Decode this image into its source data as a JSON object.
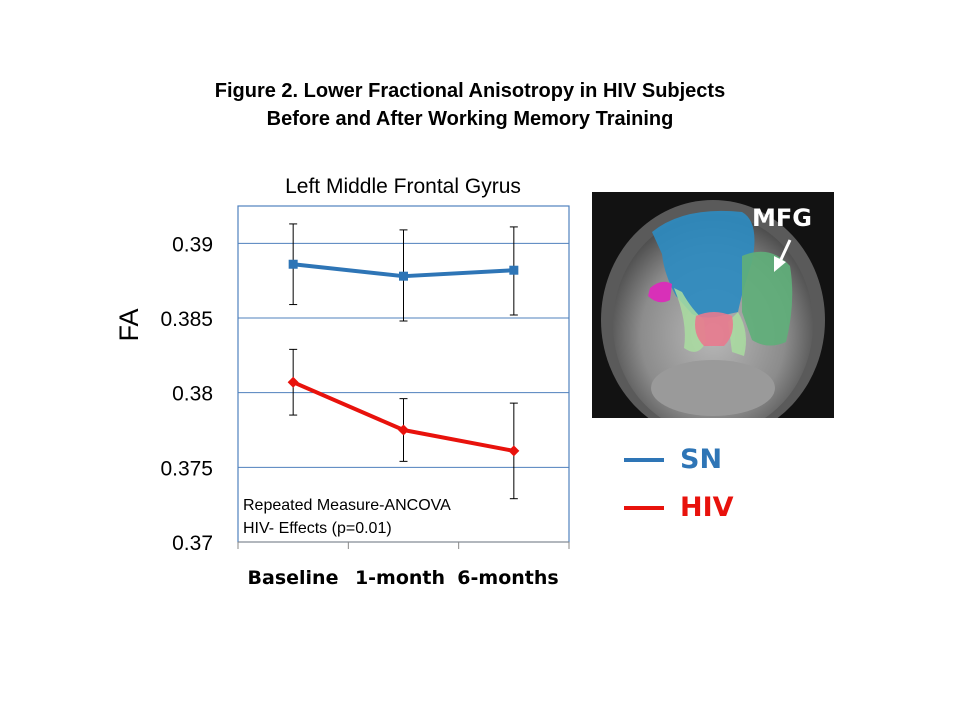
{
  "title": {
    "line1": "Figure 2.  Lower Fractional Anisotropy in HIV Subjects",
    "line2": "Before and After Working Memory Training"
  },
  "chart_data": {
    "type": "line",
    "title": "Left Middle Frontal Gyrus",
    "ylabel": "FA",
    "xlabel": "",
    "categories": [
      "Baseline",
      "1-month",
      "6-months"
    ],
    "ylim": [
      0.37,
      0.3925
    ],
    "yticks": [
      0.37,
      0.375,
      0.38,
      0.385,
      0.39
    ],
    "ytick_labels": [
      "0.37",
      "0.375",
      "0.38",
      "0.385",
      "0.39"
    ],
    "grid": "horizontal",
    "series": [
      {
        "name": "SN",
        "color": "#2E75B6",
        "marker": "square",
        "values": [
          0.3886,
          0.3878,
          0.3882
        ],
        "err_low": [
          0.3859,
          0.3848,
          0.3852
        ],
        "err_high": [
          0.3913,
          0.3909,
          0.3911
        ]
      },
      {
        "name": "HIV",
        "color": "#E8120C",
        "marker": "diamond",
        "values": [
          0.3807,
          0.3775,
          0.3761
        ],
        "err_low": [
          0.3785,
          0.3754,
          0.3729
        ],
        "err_high": [
          0.3829,
          0.3796,
          0.3793
        ]
      }
    ],
    "annotation": [
      "Repeated Measure-ANCOVA",
      "HIV- Effects (p=0.01)"
    ]
  },
  "brain_image": {
    "label": "MFG",
    "colors": {
      "blue": "#2E8BC0",
      "green": "#5FAF7A",
      "light_green": "#A9DDA0",
      "pink": "#E87A8E",
      "magenta": "#D830B8"
    }
  },
  "legend": {
    "items": [
      {
        "label": "SN",
        "color": "#2E75B6"
      },
      {
        "label": "HIV",
        "color": "#E8120C"
      }
    ]
  }
}
